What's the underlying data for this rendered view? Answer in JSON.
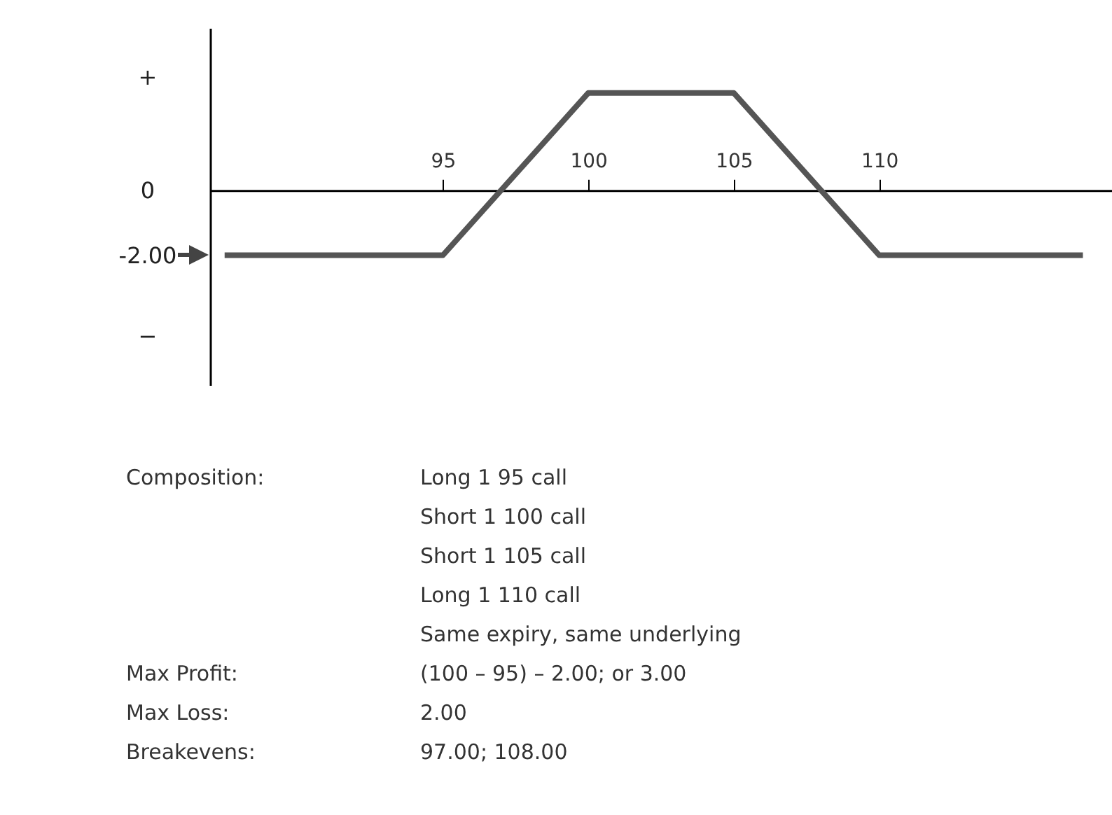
{
  "chart_data": {
    "type": "line",
    "x": [
      87.5,
      95,
      100,
      105,
      110,
      117
    ],
    "series": [
      {
        "color": "#555555",
        "values": [
          -2,
          -2,
          3,
          3,
          -2,
          -2
        ]
      }
    ],
    "xlim": [
      87,
      118
    ],
    "xticks": [
      95,
      100,
      105,
      110
    ],
    "ylim": [
      -6,
      5
    ],
    "yticks": [
      {
        "value": 3.5,
        "label": "+"
      },
      {
        "value": 0,
        "label": "0"
      },
      {
        "value": -2,
        "label": "-2.00"
      },
      {
        "value": -4.5,
        "label": "−"
      }
    ],
    "grid": false,
    "marker": "none",
    "line_style": "solid",
    "annotations": [
      "Composition:",
      "Long 1 95 call",
      "Short 1 100 call",
      "Short 1 105 call",
      "Long 1 110 call",
      "Same expiry, same underlying",
      "Max Profit:",
      "(100 – 95) – 2.00; or 3.00",
      "Max Loss:",
      "2.00",
      "Breakevens:",
      "97.00; 108.00"
    ]
  }
}
